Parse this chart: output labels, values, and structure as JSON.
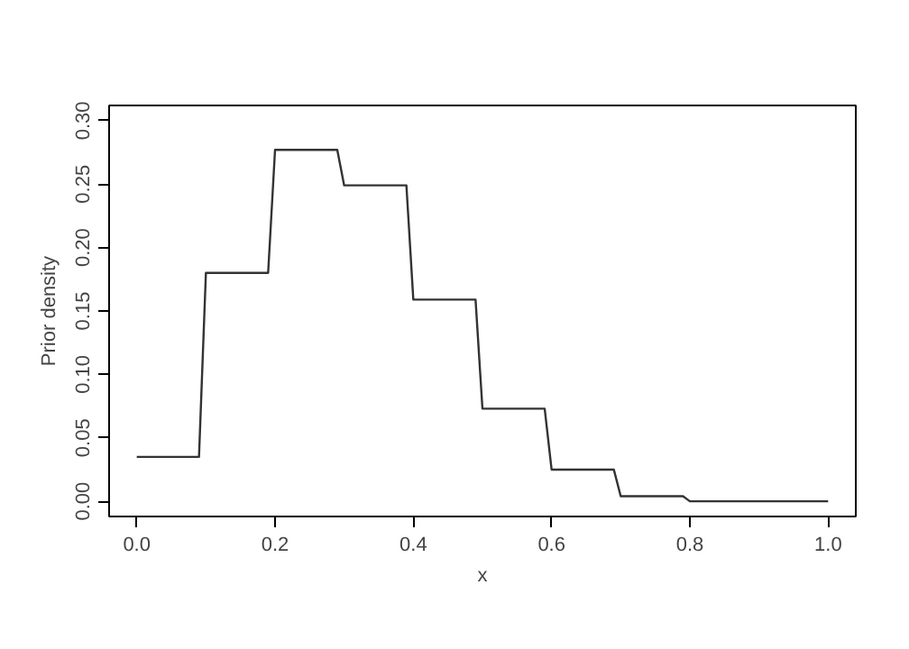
{
  "chart_data": {
    "type": "line",
    "xlabel": "x",
    "ylabel": "Prior density",
    "x": [
      0.0,
      0.09,
      0.1,
      0.19,
      0.2,
      0.29,
      0.3,
      0.39,
      0.4,
      0.49,
      0.5,
      0.59,
      0.6,
      0.69,
      0.7,
      0.79,
      0.8,
      0.9,
      1.0
    ],
    "series": [
      {
        "color": "#333333",
        "values": [
          0.035,
          0.035,
          0.18,
          0.18,
          0.277,
          0.277,
          0.249,
          0.249,
          0.159,
          0.159,
          0.073,
          0.073,
          0.025,
          0.025,
          0.004,
          0.004,
          0.0,
          0.0,
          0.0
        ]
      }
    ],
    "xlim": [
      -0.04,
      1.04
    ],
    "ylim": [
      -0.012,
      0.312
    ],
    "xticks": [
      {
        "value": 0,
        "label": "0.0"
      },
      {
        "value": 0.2,
        "label": "0.2"
      },
      {
        "value": 0.4,
        "label": "0.4"
      },
      {
        "value": 0.6,
        "label": "0.6"
      },
      {
        "value": 0.8,
        "label": "0.8"
      },
      {
        "value": 1,
        "label": "1.0"
      }
    ],
    "yticks": [
      {
        "value": 0,
        "label": "0.00"
      },
      {
        "value": 0.05,
        "label": "0.05"
      },
      {
        "value": 0.1,
        "label": "0.10"
      },
      {
        "value": 0.15,
        "label": "0.15"
      },
      {
        "value": 0.2,
        "label": "0.20"
      },
      {
        "value": 0.25,
        "label": "0.25"
      },
      {
        "value": 0.3,
        "label": "0.30"
      }
    ],
    "grid": false,
    "marker": "none",
    "line_style": "solid"
  }
}
